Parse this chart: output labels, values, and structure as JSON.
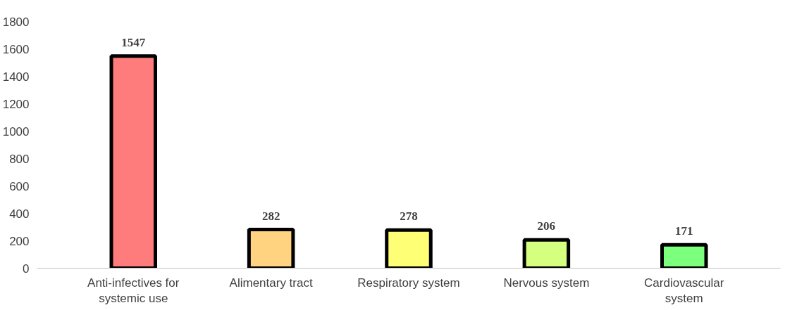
{
  "chart_data": {
    "type": "bar",
    "categories": [
      "Anti-infectives for systemic use",
      "Alimentary tract",
      "Respiratory system",
      "Nervous system",
      "Cardiovascular system"
    ],
    "values": [
      1547,
      282,
      278,
      206,
      171
    ],
    "colors": [
      "#ff7c7c",
      "#ffd37f",
      "#ffff75",
      "#d4ff7f",
      "#7cff7c"
    ],
    "ylim": [
      0,
      1800
    ],
    "yticks": [
      0,
      200,
      400,
      600,
      800,
      1000,
      1200,
      1400,
      1600,
      1800
    ],
    "grid": false,
    "data_labels": true
  }
}
